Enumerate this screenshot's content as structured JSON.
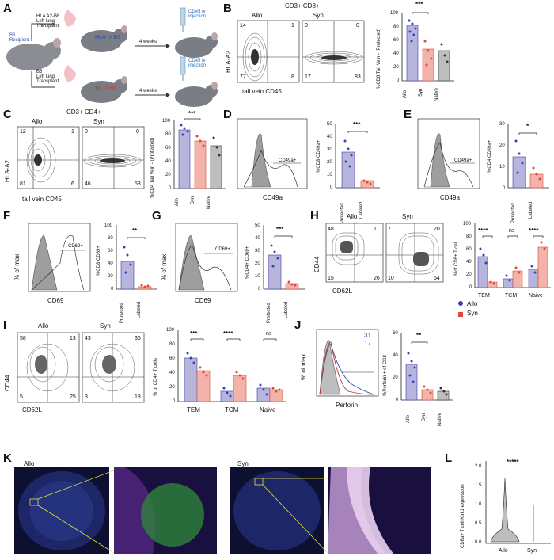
{
  "panel_labels": {
    "A": "A",
    "B": "B",
    "C": "C",
    "D": "D",
    "E": "E",
    "F": "F",
    "G": "G",
    "H": "H",
    "I": "I",
    "J": "J",
    "K": "K",
    "L": "L"
  },
  "A": {
    "recipient": "B6\nRecipient",
    "allo_transplant": "HLA A2-B6\nLeft lung\nTransplant",
    "syn_transplant": "B6\nLeft lung\nTransplant",
    "allo_name": "HLA -> B6",
    "syn_name": "B6 -> B6",
    "weeks1": "4 weeks",
    "weeks2": "4 weeks",
    "inj1": "CD45 tv\ninjection",
    "inj2": "CD45 tv\ninjection"
  },
  "B": {
    "title": "CD3+ CD8+",
    "allo": "Allo",
    "syn": "Syn",
    "ylabel": "HLA-A2",
    "xlabel": "tail vein CD45",
    "allo_q": [
      "14",
      "1",
      "77",
      "8"
    ],
    "syn_q": [
      "0",
      "0",
      "17",
      "83"
    ],
    "bar_ylabel": "%CD8 Tail Vein - (Protected)",
    "ticks": [
      "100",
      "80",
      "60",
      "40",
      "20",
      "0"
    ],
    "cats": [
      "Allo",
      "Syn",
      "Native"
    ],
    "sig": "***"
  },
  "C": {
    "title": "CD3+ CD4+",
    "allo": "Allo",
    "syn": "Syn",
    "ylabel": "HLA-A2",
    "xlabel": "tail vein CD45",
    "allo_q": [
      "12",
      "1",
      "81",
      "6"
    ],
    "syn_q": [
      "0",
      "0",
      "46",
      "53"
    ],
    "bar_ylabel": "%CD4 Tail Vein - (Protected)",
    "ticks": [
      "100",
      "80",
      "60",
      "40",
      "20",
      "0"
    ],
    "cats": [
      "Allo",
      "Syn",
      "Native"
    ],
    "sig": "***"
  },
  "D": {
    "xlabel": "CD49a",
    "bar_ylabel": "%CD8 CD49a+",
    "ticks": [
      "50",
      "40",
      "30",
      "20",
      "10",
      "0"
    ],
    "cats": [
      "Protected",
      "Labeled"
    ],
    "sig": "***",
    "gate": "CD49a+"
  },
  "E": {
    "xlabel": "CD49a",
    "bar_ylabel": "%CD4 CD49a+",
    "ticks": [
      "30",
      "20",
      "10",
      "0"
    ],
    "cats": [
      "Protected",
      "Labeled"
    ],
    "sig": "*",
    "gate": "CD49a+"
  },
  "F": {
    "ylabel": "% of max",
    "xlabel": "CD69",
    "bar_ylabel": "%CD8 CD69+",
    "ticks": [
      "100",
      "80",
      "60",
      "40",
      "20",
      "0"
    ],
    "cats": [
      "Protected",
      "Labeled"
    ],
    "sig": "**",
    "gate": "CD69+"
  },
  "G": {
    "ylabel": "% of max",
    "xlabel": "CD69",
    "bar_ylabel": "%CD4+ CD69+",
    "ticks": [
      "50",
      "40",
      "30",
      "20",
      "10",
      "0"
    ],
    "cats": [
      "Protected",
      "Labeled"
    ],
    "sig": "***",
    "gate": "CD69+"
  },
  "H": {
    "allo": "Allo",
    "syn": "Syn",
    "ylabel": "CD44",
    "xlabel": "CD62L",
    "allo_q": [
      "48",
      "11",
      "15",
      "26"
    ],
    "syn_q": [
      "7",
      "20",
      "10",
      "64"
    ],
    "bar_ylabel": "%of CD8+ T cell",
    "ticks": [
      "100",
      "80",
      "60",
      "40",
      "20",
      "0"
    ],
    "cats": [
      "TEM",
      "TCM",
      "Naive"
    ],
    "sigs": [
      "****",
      "ns",
      "****"
    ],
    "legend": [
      "Allo",
      "Syn"
    ]
  },
  "I": {
    "allo": "Allo",
    "syn": "Syn",
    "ylabel": "CD44",
    "xlabel": "CD62L",
    "allo_q": [
      "58",
      "13",
      "5",
      "25"
    ],
    "syn_q": [
      "43",
      "36",
      "3",
      "18"
    ],
    "bar_ylabel": "% of CD4+ T cells",
    "ticks": [
      "100",
      "80",
      "60",
      "40",
      "20",
      "0"
    ],
    "cats": [
      "TEM",
      "TCM",
      "Naive"
    ],
    "sigs": [
      "***",
      "****",
      "ns"
    ]
  },
  "J": {
    "ylabel": "% of max",
    "xlabel": "Perforin",
    "n_allo": "31",
    "n_syn": "17",
    "bar_ylabel": "%Perforin + of CD8",
    "ticks": [
      "60",
      "40",
      "20",
      "0"
    ],
    "cats": [
      "Allo",
      "Syn",
      "Native"
    ],
    "sig": "**"
  },
  "K": {
    "allo": "Allo",
    "syn": "Syn"
  },
  "L": {
    "ylabel": "CD8a+ T cell Klrk1 expression",
    "ticks": [
      "2.0",
      "1.5",
      "1.0",
      "0.5",
      "0.0"
    ],
    "cats": [
      "Allo",
      "Syn"
    ],
    "sig": "*****"
  },
  "colors": {
    "allo": "#3b3fb0",
    "syn": "#e0463a",
    "native": "#333333",
    "allo_bar": "#b7b5dc",
    "syn_bar": "#f2b3a8",
    "native_bar": "#bdbdbd"
  }
}
